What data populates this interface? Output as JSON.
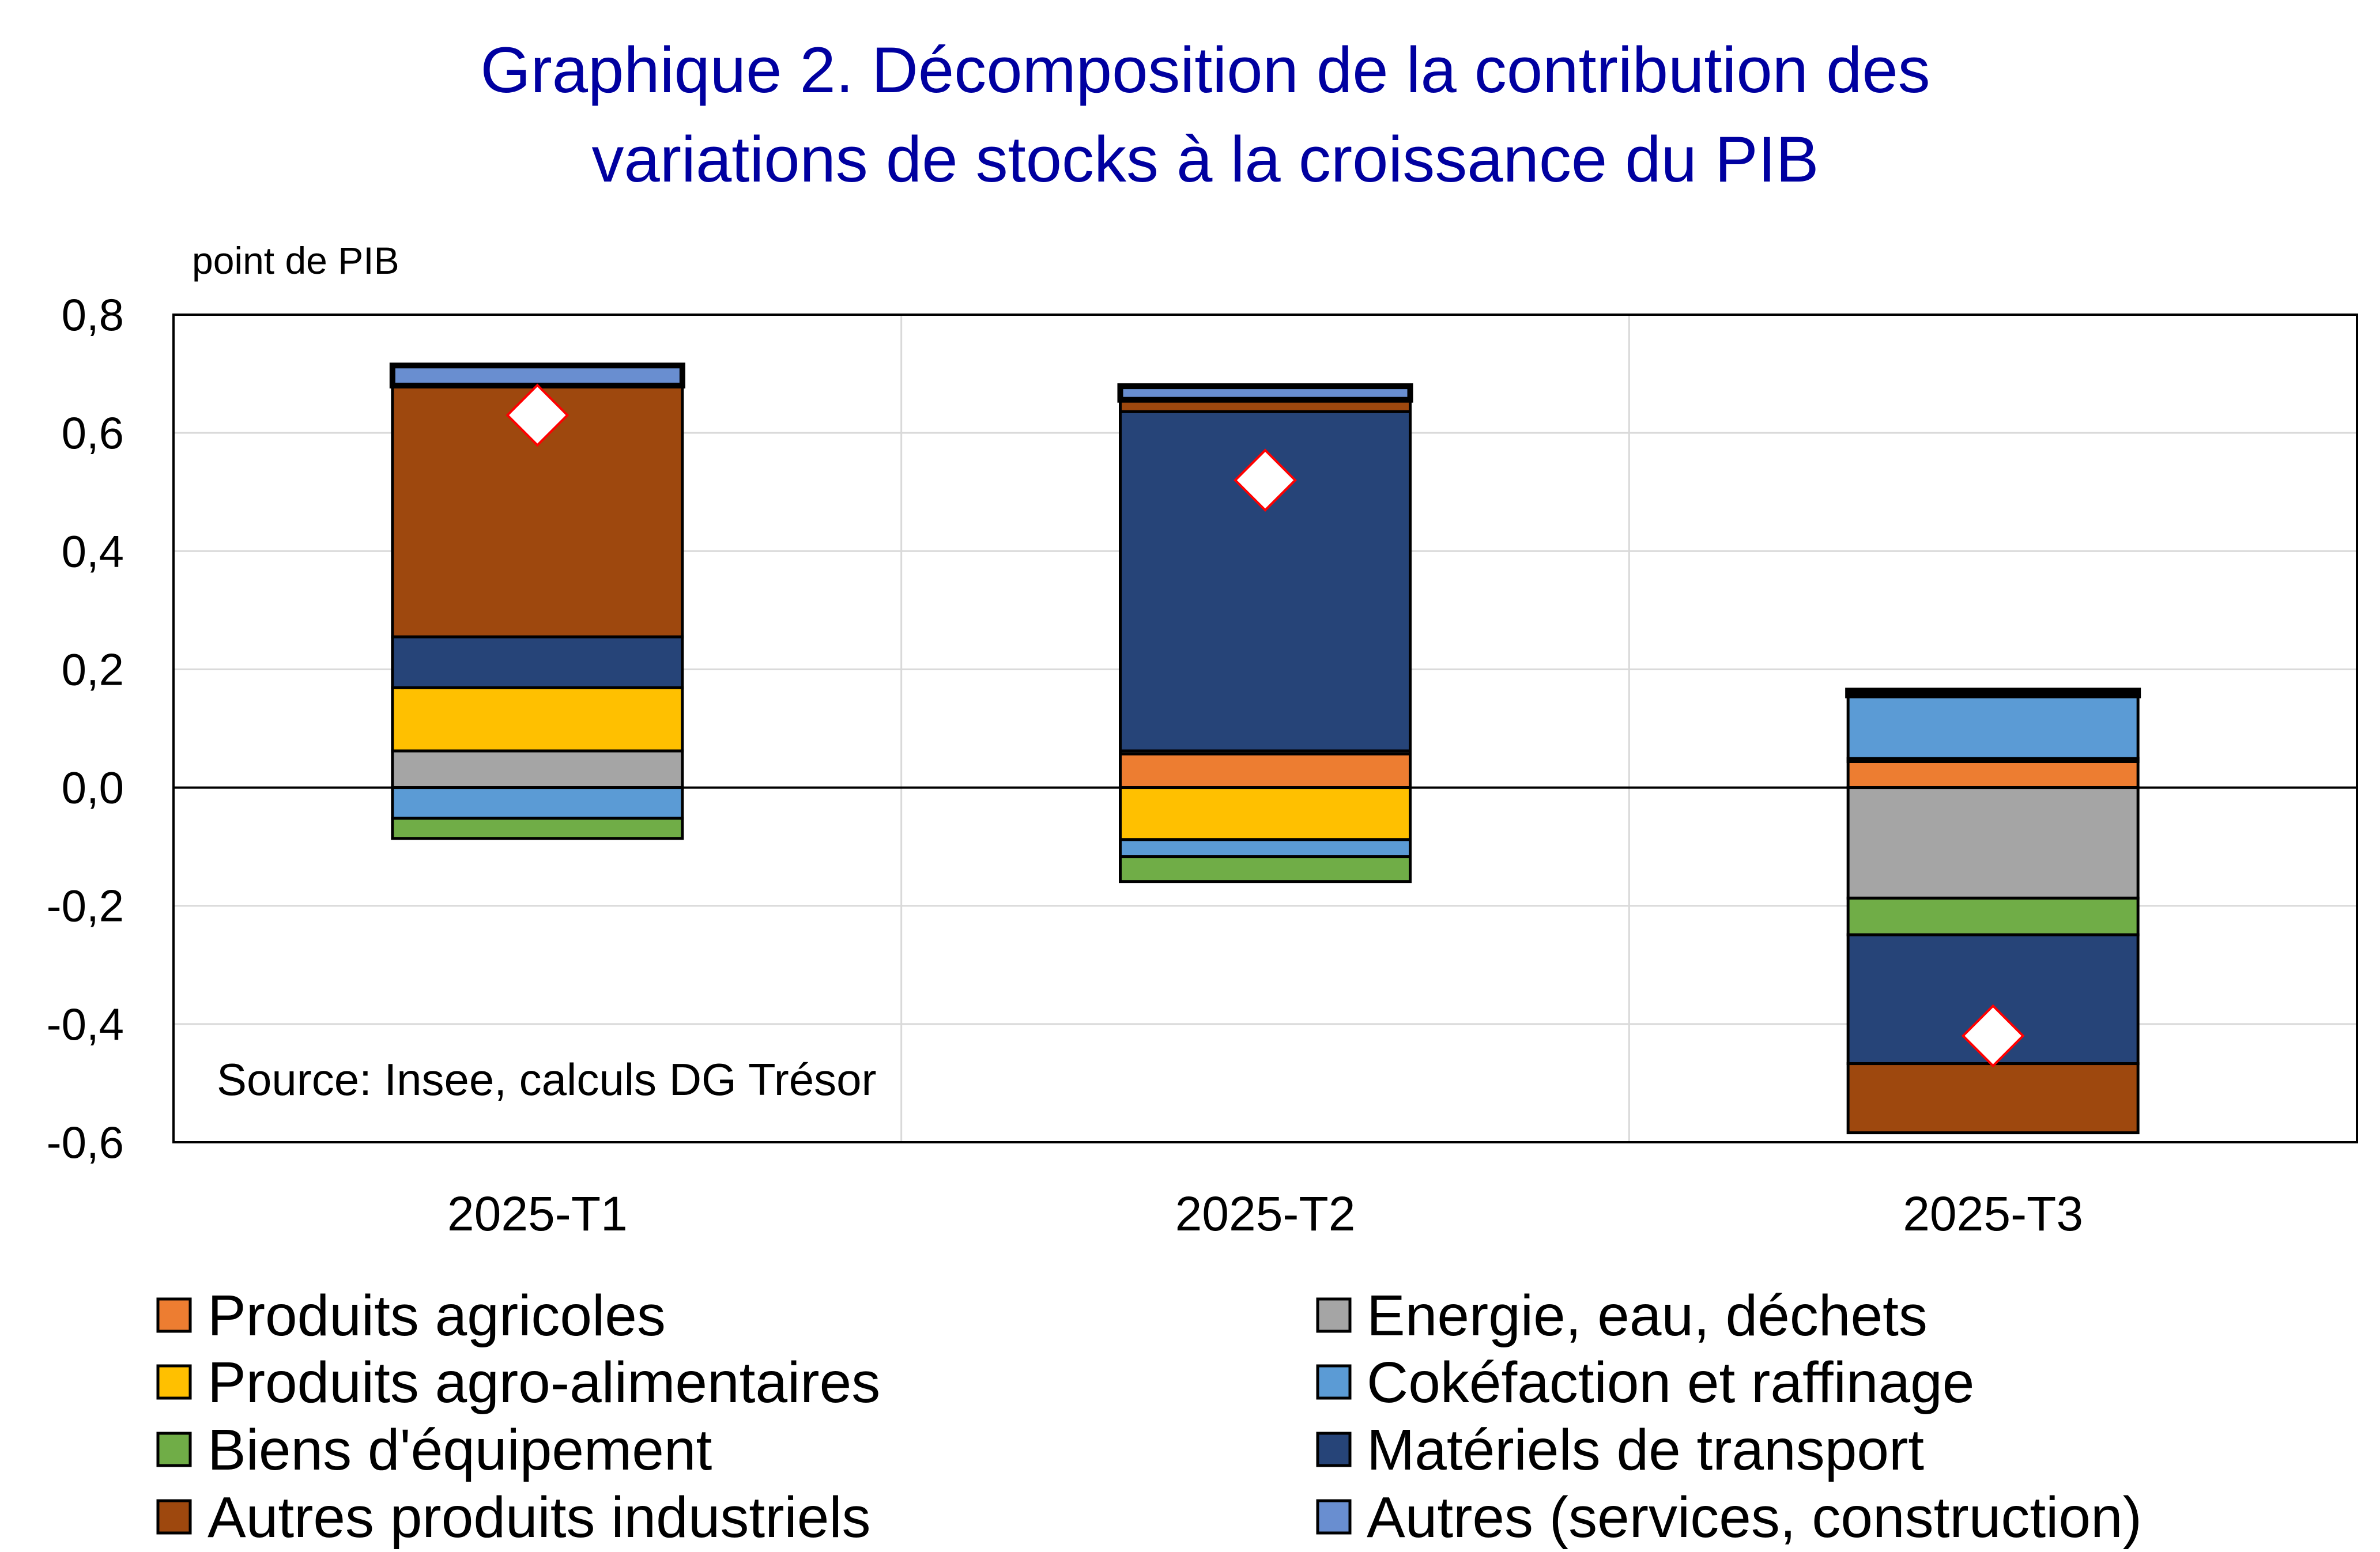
{
  "chart_data": {
    "type": "bar",
    "stacked": true,
    "title": "Graphique 2. Décomposition de la contribution des variations de stocks à la croissance du PIB",
    "title_lines": [
      "Graphique 2. Décomposition de la contribution des",
      "variations de stocks à la croissance du PIB"
    ],
    "ylabel": "point de PIB",
    "source": "Source: Insee, calculs DG Trésor",
    "ylim": [
      -0.6,
      0.8
    ],
    "yticks": [
      -0.6,
      -0.4,
      -0.2,
      0.0,
      0.2,
      0.4,
      0.6,
      0.8
    ],
    "ytick_labels": [
      "-0,6",
      "-0,4",
      "-0,2",
      "0,0",
      "0,2",
      "0,4",
      "0,6",
      "0,8"
    ],
    "grid": true,
    "legend_position": "bottom",
    "categories": [
      "2025-T1",
      "2025-T2",
      "2025-T3"
    ],
    "series": [
      {
        "name": "Produits agricoles",
        "color": "#ED7D31",
        "values": [
          0.0,
          0.057,
          0.044
        ]
      },
      {
        "name": "Produits agro-alimentaires",
        "color": "#FFC000",
        "values": [
          0.107,
          -0.088,
          0.005
        ]
      },
      {
        "name": "Biens d'équipement",
        "color": "#70AD47",
        "values": [
          -0.034,
          -0.042,
          -0.062
        ]
      },
      {
        "name": "Autres produits industriels",
        "color": "#9E480E",
        "values": [
          0.425,
          0.02,
          -0.117
        ]
      },
      {
        "name": "Energie, eau, déchets",
        "color": "#A5A5A5",
        "values": [
          0.062,
          0.005,
          -0.187
        ]
      },
      {
        "name": "Cokéfaction et raffinage",
        "color": "#5B9BD5",
        "values": [
          -0.052,
          -0.029,
          0.107
        ]
      },
      {
        "name": "Matériels de transport",
        "color": "#264478",
        "values": [
          0.086,
          0.574,
          -0.218
        ]
      },
      {
        "name": "Autres (services, construction)",
        "color": "#698ED0",
        "values": [
          0.034,
          0.023,
          0.008
        ]
      }
    ],
    "total_markers": {
      "marker": "diamond",
      "fill": "#FFFFFF",
      "edge": "#FF0000",
      "values": [
        0.63,
        0.52,
        -0.42
      ]
    }
  },
  "colors": {
    "title": "#0000A0"
  }
}
